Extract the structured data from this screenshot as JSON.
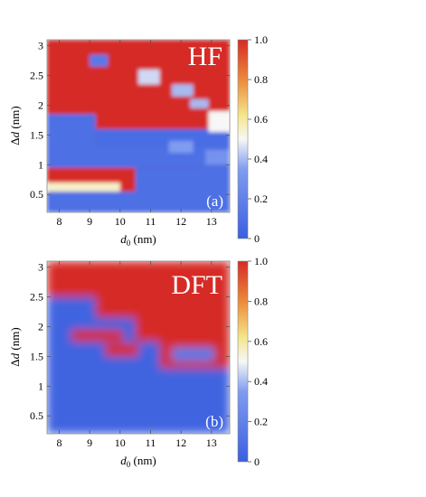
{
  "chart_data": [
    {
      "type": "heatmap",
      "panel": "(a)",
      "title": "HF",
      "xlabel": "d_0 (nm)",
      "ylabel": "Δd (nm)",
      "xlim": [
        7.6,
        13.6
      ],
      "ylim": [
        0.2,
        3.1
      ],
      "xticks": [
        8,
        9,
        10,
        11,
        12,
        13
      ],
      "yticks": [
        0.5,
        1.0,
        1.5,
        2.0,
        2.5,
        3.0
      ],
      "colorbar": {
        "range": [
          0,
          1
        ],
        "ticks": [
          0,
          0.2,
          0.4,
          0.6,
          0.8,
          1.0
        ]
      },
      "background_value": 1.0,
      "regions": [
        {
          "x": [
            7.6,
            9.2
          ],
          "y": [
            1.3,
            1.85
          ],
          "value": 0.1
        },
        {
          "x": [
            7.6,
            13.6
          ],
          "y": [
            0.95,
            1.3
          ],
          "value": 0.1
        },
        {
          "x": [
            9.2,
            13.6
          ],
          "y": [
            1.3,
            1.6
          ],
          "value": 0.08
        },
        {
          "x": [
            7.6,
            13.6
          ],
          "y": [
            0.2,
            0.55
          ],
          "value": 0.1
        },
        {
          "x": [
            10.5,
            13.6
          ],
          "y": [
            0.55,
            0.95
          ],
          "value": 0.1
        },
        {
          "x": [
            7.6,
            10.0
          ],
          "y": [
            0.55,
            0.7
          ],
          "value": 0.55
        },
        {
          "x": [
            9.0,
            9.6
          ],
          "y": [
            2.65,
            2.85
          ],
          "value": 0.15
        },
        {
          "x": [
            10.6,
            11.3
          ],
          "y": [
            2.35,
            2.6
          ],
          "value": 0.45
        },
        {
          "x": [
            11.7,
            12.4
          ],
          "y": [
            2.15,
            2.35
          ],
          "value": 0.4
        },
        {
          "x": [
            12.3,
            12.9
          ],
          "y": [
            1.95,
            2.1
          ],
          "value": 0.4
        },
        {
          "x": [
            12.9,
            13.6
          ],
          "y": [
            1.55,
            1.9
          ],
          "value": 0.5
        },
        {
          "x": [
            11.6,
            12.4
          ],
          "y": [
            1.2,
            1.4
          ],
          "value": 0.35
        },
        {
          "x": [
            12.8,
            13.6
          ],
          "y": [
            1.0,
            1.25
          ],
          "value": 0.3
        }
      ]
    },
    {
      "type": "heatmap",
      "panel": "(b)",
      "title": "DFT",
      "xlabel": "d_0 (nm)",
      "ylabel": "Δd (nm)",
      "xlim": [
        7.6,
        13.6
      ],
      "ylim": [
        0.2,
        3.1
      ],
      "xticks": [
        8,
        9,
        10,
        11,
        12,
        13
      ],
      "yticks": [
        0.5,
        1.0,
        1.5,
        2.0,
        2.5,
        3.0
      ],
      "colorbar": {
        "range": [
          0,
          1
        ],
        "ticks": [
          0,
          0.2,
          0.4,
          0.6,
          0.8,
          1.0
        ]
      },
      "background_value": 0.05,
      "regions": [
        {
          "x": [
            7.6,
            13.6
          ],
          "y": [
            2.5,
            3.1
          ],
          "value": 1.0
        },
        {
          "x": [
            9.2,
            13.6
          ],
          "y": [
            2.15,
            2.5
          ],
          "value": 1.0
        },
        {
          "x": [
            10.5,
            13.6
          ],
          "y": [
            1.75,
            2.15
          ],
          "value": 1.0
        },
        {
          "x": [
            11.3,
            13.6
          ],
          "y": [
            1.3,
            1.75
          ],
          "value": 1.0
        },
        {
          "x": [
            8.4,
            10.1
          ],
          "y": [
            1.75,
            1.95
          ],
          "value": 1.0
        },
        {
          "x": [
            9.5,
            10.6
          ],
          "y": [
            1.5,
            1.72
          ],
          "value": 1.0
        },
        {
          "x": [
            11.7,
            13.1
          ],
          "y": [
            1.42,
            1.65
          ],
          "value": 0.15
        }
      ]
    }
  ]
}
